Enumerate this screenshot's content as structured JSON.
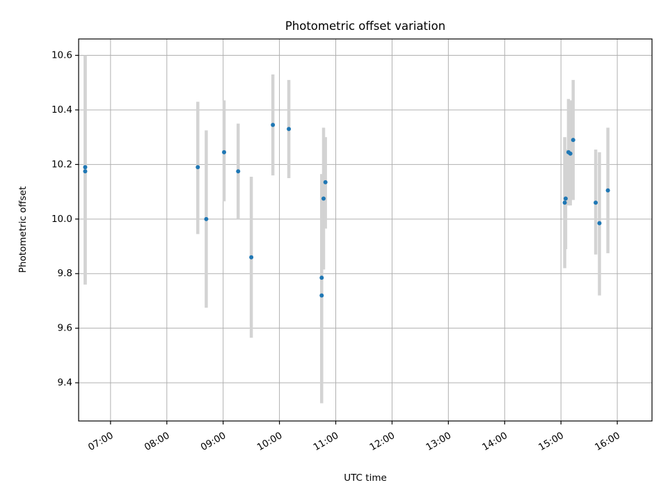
{
  "chart_data": {
    "type": "scatter",
    "title": "Photometric offset variation",
    "xlabel": "UTC time",
    "ylabel": "Photometric offset",
    "xlim": [
      "06:26",
      "16:37"
    ],
    "ylim": [
      9.26,
      10.66
    ],
    "x_ticks": [
      "07:00",
      "08:00",
      "09:00",
      "10:00",
      "11:00",
      "12:00",
      "13:00",
      "14:00",
      "15:00",
      "16:00"
    ],
    "y_ticks": [
      "9.4",
      "9.6",
      "9.8",
      "10.0",
      "10.2",
      "10.4",
      "10.6"
    ],
    "grid": true,
    "colors": {
      "point": "#1f77b4",
      "error_bar": "#d3d3d3"
    },
    "points": [
      {
        "x": "06:33",
        "y": 10.19,
        "y_low": 9.76,
        "y_high": 10.6
      },
      {
        "x": "06:33",
        "y": 10.175,
        "y_low": 9.76,
        "y_high": 10.6
      },
      {
        "x": "08:33",
        "y": 10.19,
        "y_low": 9.945,
        "y_high": 10.43
      },
      {
        "x": "08:42",
        "y": 10.0,
        "y_low": 9.675,
        "y_high": 10.325
      },
      {
        "x": "09:01",
        "y": 10.245,
        "y_low": 10.065,
        "y_high": 10.435
      },
      {
        "x": "09:16",
        "y": 10.175,
        "y_low": 10.0,
        "y_high": 10.35
      },
      {
        "x": "09:30",
        "y": 9.86,
        "y_low": 9.565,
        "y_high": 10.155
      },
      {
        "x": "09:53",
        "y": 10.345,
        "y_low": 10.16,
        "y_high": 10.53
      },
      {
        "x": "10:10",
        "y": 10.33,
        "y_low": 10.15,
        "y_high": 10.51
      },
      {
        "x": "10:45",
        "y": 9.72,
        "y_low": 9.325,
        "y_high": 10.115
      },
      {
        "x": "10:45",
        "y": 9.785,
        "y_low": 9.4,
        "y_high": 10.165
      },
      {
        "x": "10:47",
        "y": 10.075,
        "y_low": 9.815,
        "y_high": 10.335
      },
      {
        "x": "10:49",
        "y": 10.135,
        "y_low": 9.965,
        "y_high": 10.3
      },
      {
        "x": "15:04",
        "y": 10.06,
        "y_low": 9.82,
        "y_high": 10.3
      },
      {
        "x": "15:05",
        "y": 10.075,
        "y_low": 9.89,
        "y_high": 10.255
      },
      {
        "x": "15:08",
        "y": 10.245,
        "y_low": 10.05,
        "y_high": 10.44
      },
      {
        "x": "15:10",
        "y": 10.24,
        "y_low": 10.05,
        "y_high": 10.435
      },
      {
        "x": "15:13",
        "y": 10.29,
        "y_low": 10.07,
        "y_high": 10.51
      },
      {
        "x": "15:37",
        "y": 10.06,
        "y_low": 9.87,
        "y_high": 10.255
      },
      {
        "x": "15:41",
        "y": 9.985,
        "y_low": 9.72,
        "y_high": 10.245
      },
      {
        "x": "15:50",
        "y": 10.105,
        "y_low": 9.875,
        "y_high": 10.335
      }
    ]
  }
}
